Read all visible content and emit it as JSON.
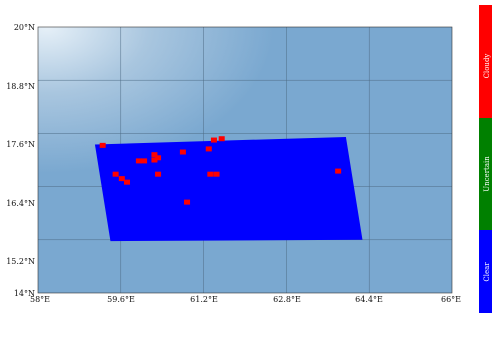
{
  "map": {
    "lon_ticks": [
      "58°E",
      "59.6°E",
      "61.2°E",
      "62.8°E",
      "64.4°E",
      "66°E"
    ],
    "lat_ticks": [
      "20°N",
      "18.8°N",
      "17.6°N",
      "16.4°N",
      "15.2°N",
      "14°N"
    ],
    "lon_range": [
      58,
      66
    ],
    "lat_range": [
      14,
      20
    ],
    "ocean_color": "#7aa8d0",
    "grid_color": "#4d6b85"
  },
  "legend": {
    "classes": [
      {
        "label": "Cloudy",
        "color": "#ff0000"
      },
      {
        "label": "Uncertain",
        "color": "#008000"
      },
      {
        "label": "Clear",
        "color": "#0000ff"
      }
    ]
  },
  "swath": {
    "color": "#0000ff",
    "cloud_color": "#ff0000",
    "polygon_lonlat": [
      [
        59.1,
        17.35
      ],
      [
        63.95,
        17.52
      ],
      [
        64.27,
        15.2
      ],
      [
        59.4,
        15.17
      ]
    ],
    "cloud_pixels_lonlat": [
      [
        59.25,
        17.33
      ],
      [
        60.8,
        17.18
      ],
      [
        61.55,
        17.48
      ],
      [
        61.4,
        17.45
      ],
      [
        61.3,
        17.25
      ],
      [
        60.25,
        17.12
      ],
      [
        60.25,
        17.0
      ],
      [
        60.32,
        17.05
      ],
      [
        59.95,
        16.98
      ],
      [
        60.05,
        16.98
      ],
      [
        59.5,
        16.68
      ],
      [
        59.62,
        16.58
      ],
      [
        59.72,
        16.5
      ],
      [
        60.32,
        16.68
      ],
      [
        61.33,
        16.68
      ],
      [
        61.45,
        16.68
      ],
      [
        63.8,
        16.75
      ],
      [
        60.88,
        16.05
      ]
    ]
  }
}
